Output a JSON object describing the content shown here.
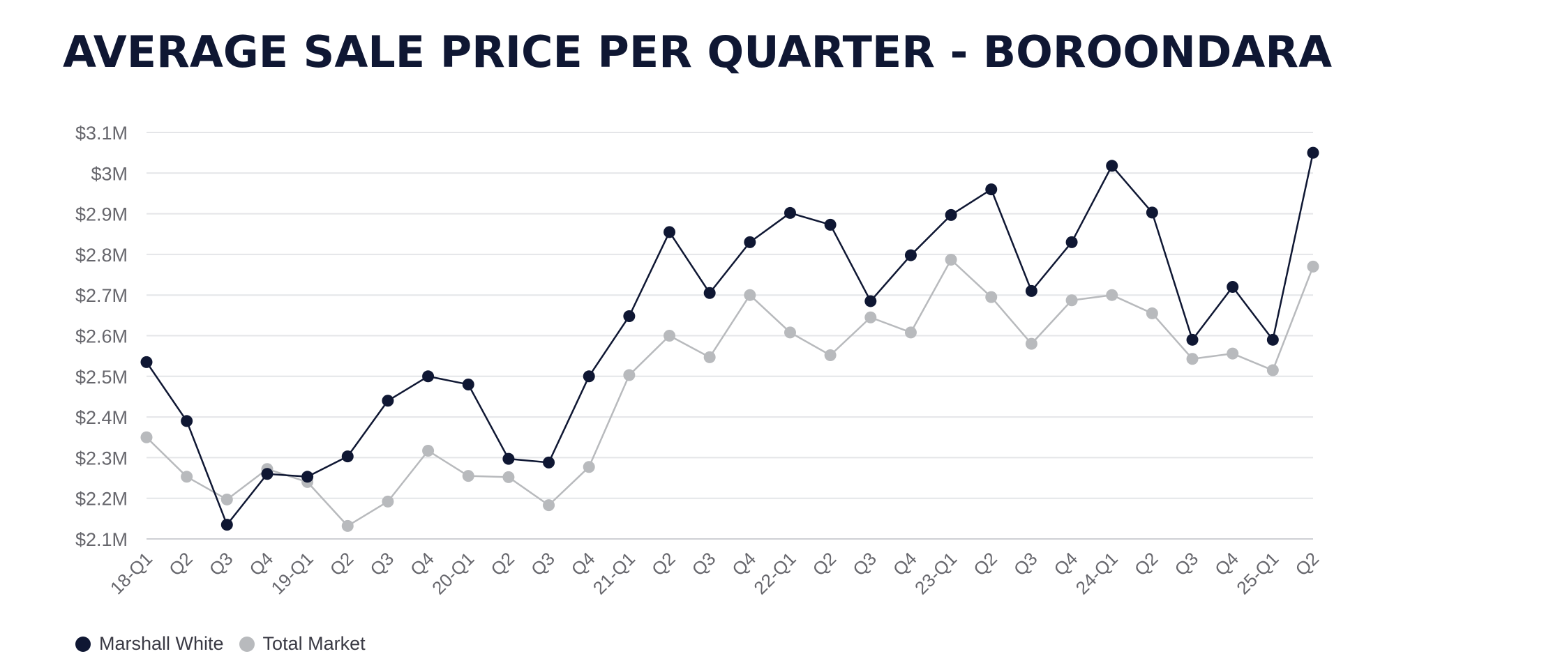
{
  "title": "AVERAGE SALE PRICE PER QUARTER - BOROONDARA",
  "chart_data": {
    "type": "line",
    "title": "AVERAGE SALE PRICE PER QUARTER - BOROONDARA",
    "xlabel": "",
    "ylabel": "",
    "categories": [
      "18-Q1",
      "Q2",
      "Q3",
      "Q4",
      "19-Q1",
      "Q2",
      "Q3",
      "Q4",
      "20-Q1",
      "Q2",
      "Q3",
      "Q4",
      "21-Q1",
      "Q2",
      "Q3",
      "Q4",
      "22-Q1",
      "Q2",
      "Q3",
      "Q4",
      "23-Q1",
      "Q2",
      "Q3",
      "Q4",
      "24-Q1",
      "Q2",
      "Q3",
      "Q4",
      "25-Q1",
      "Q2"
    ],
    "ylim": [
      2.1,
      3.1
    ],
    "yticks": [
      {
        "value": 3.1,
        "label": "$3.1M"
      },
      {
        "value": 3.0,
        "label": "$3M"
      },
      {
        "value": 2.9,
        "label": "$2.9M"
      },
      {
        "value": 2.8,
        "label": "$2.8M"
      },
      {
        "value": 2.7,
        "label": "$2.7M"
      },
      {
        "value": 2.6,
        "label": "$2.6M"
      },
      {
        "value": 2.5,
        "label": "$2.5M"
      },
      {
        "value": 2.4,
        "label": "$2.4M"
      },
      {
        "value": 2.3,
        "label": "$2.3M"
      },
      {
        "value": 2.2,
        "label": "$2.2M"
      },
      {
        "value": 2.1,
        "label": "$2.1M"
      }
    ],
    "grid": true,
    "legend_position": "bottom-left",
    "series": [
      {
        "name": "Marshall White",
        "color": "#0f1733",
        "values": [
          2.535,
          2.39,
          2.135,
          2.26,
          2.253,
          2.303,
          2.44,
          2.5,
          2.48,
          2.297,
          2.288,
          2.5,
          2.648,
          2.855,
          2.705,
          2.83,
          2.902,
          2.873,
          2.685,
          2.798,
          2.897,
          2.96,
          2.71,
          2.83,
          3.018,
          2.903,
          2.59,
          2.72,
          2.59,
          3.05
        ]
      },
      {
        "name": "Total Market",
        "color": "#b8babd",
        "values": [
          2.35,
          2.253,
          2.197,
          2.272,
          2.24,
          2.132,
          2.192,
          2.317,
          2.255,
          2.252,
          2.183,
          2.277,
          2.503,
          2.6,
          2.547,
          2.7,
          2.608,
          2.552,
          2.645,
          2.608,
          2.787,
          2.695,
          2.58,
          2.687,
          2.7,
          2.655,
          2.543,
          2.556,
          2.515,
          2.77
        ]
      }
    ]
  }
}
